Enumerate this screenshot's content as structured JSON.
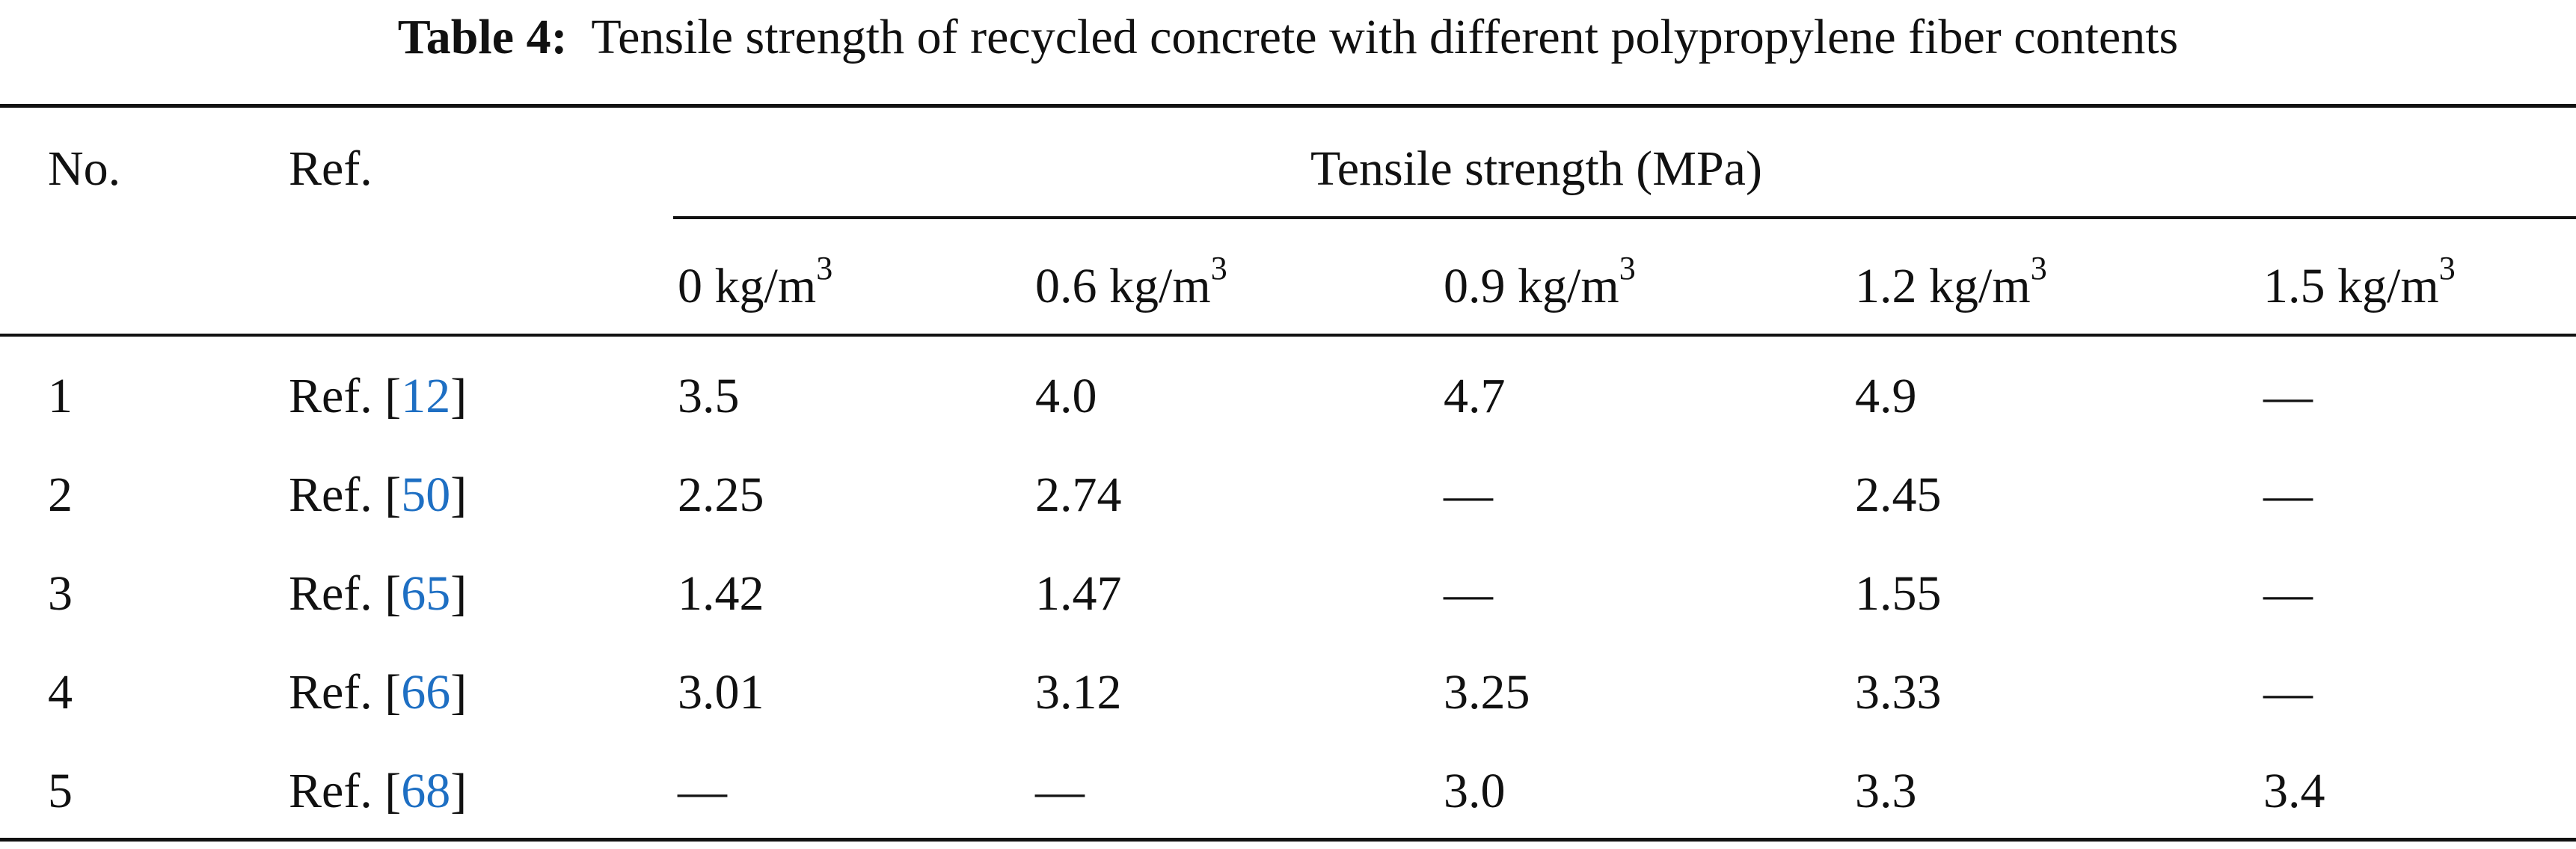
{
  "caption": {
    "label": "Table 4:",
    "text": "Tensile strength of recycled concrete with different polypropylene fiber contents"
  },
  "header": {
    "no": "No.",
    "ref": "Ref.",
    "group": "Tensile strength (MPa)",
    "unit": "kg/m",
    "unit_exp": "3",
    "contents": [
      "0",
      "0.6",
      "0.9",
      "1.2",
      "1.5"
    ]
  },
  "rows": [
    {
      "no": "1",
      "ref_prefix": "Ref. [",
      "ref_num": "12",
      "ref_suffix": "]",
      "values": [
        "3.5",
        "4.0",
        "4.7",
        "4.9",
        "—"
      ]
    },
    {
      "no": "2",
      "ref_prefix": "Ref. [",
      "ref_num": "50",
      "ref_suffix": "]",
      "values": [
        "2.25",
        "2.74",
        "—",
        "2.45",
        "—"
      ]
    },
    {
      "no": "3",
      "ref_prefix": "Ref. [",
      "ref_num": "65",
      "ref_suffix": "]",
      "values": [
        "1.42",
        "1.47",
        "—",
        "1.55",
        "—"
      ]
    },
    {
      "no": "4",
      "ref_prefix": "Ref. [",
      "ref_num": "66",
      "ref_suffix": "]",
      "values": [
        "3.01",
        "3.12",
        "3.25",
        "3.33",
        "—"
      ]
    },
    {
      "no": "5",
      "ref_prefix": "Ref. [",
      "ref_num": "68",
      "ref_suffix": "]",
      "values": [
        "—",
        "—",
        "3.0",
        "3.3",
        "3.4"
      ]
    }
  ],
  "colors": {
    "text": "#111111",
    "link": "#1e6fc3"
  }
}
